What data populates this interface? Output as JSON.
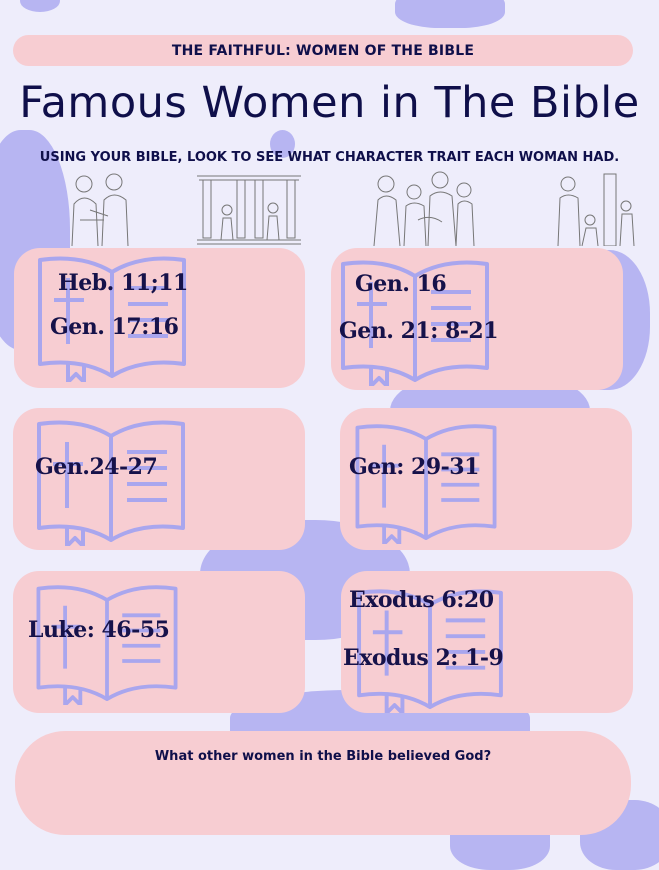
{
  "header": {
    "banner": "THE FAITHFUL: WOMEN OF THE BIBLE"
  },
  "title": "Famous Women in The Bible",
  "instructions": "USING YOUR BIBLE, LOOK TO SEE WHAT CHARACTER TRAIT EACH WOMAN HAD.",
  "cards": [
    {
      "refs": [
        "Heb. 11;11",
        "Gen. 17:16"
      ]
    },
    {
      "refs": [
        "Gen. 16",
        "Gen. 21: 8-21"
      ]
    },
    {
      "refs": [
        "Gen.24-27"
      ]
    },
    {
      "refs": [
        "Gen: 29-31"
      ]
    },
    {
      "refs": [
        "Luke: 46-55"
      ]
    },
    {
      "refs": [
        "Exodus 6:20",
        "Exodus 2: 1-9"
      ]
    }
  ],
  "question": "What other women in the Bible believed God?",
  "icons": [
    "open-bible-icon"
  ],
  "colors": {
    "background": "#eeedfb",
    "card": "#f7cdd2",
    "blob": "#b7b5f2",
    "text": "#0f0f4a",
    "book_outline": "#a9a6ee"
  }
}
